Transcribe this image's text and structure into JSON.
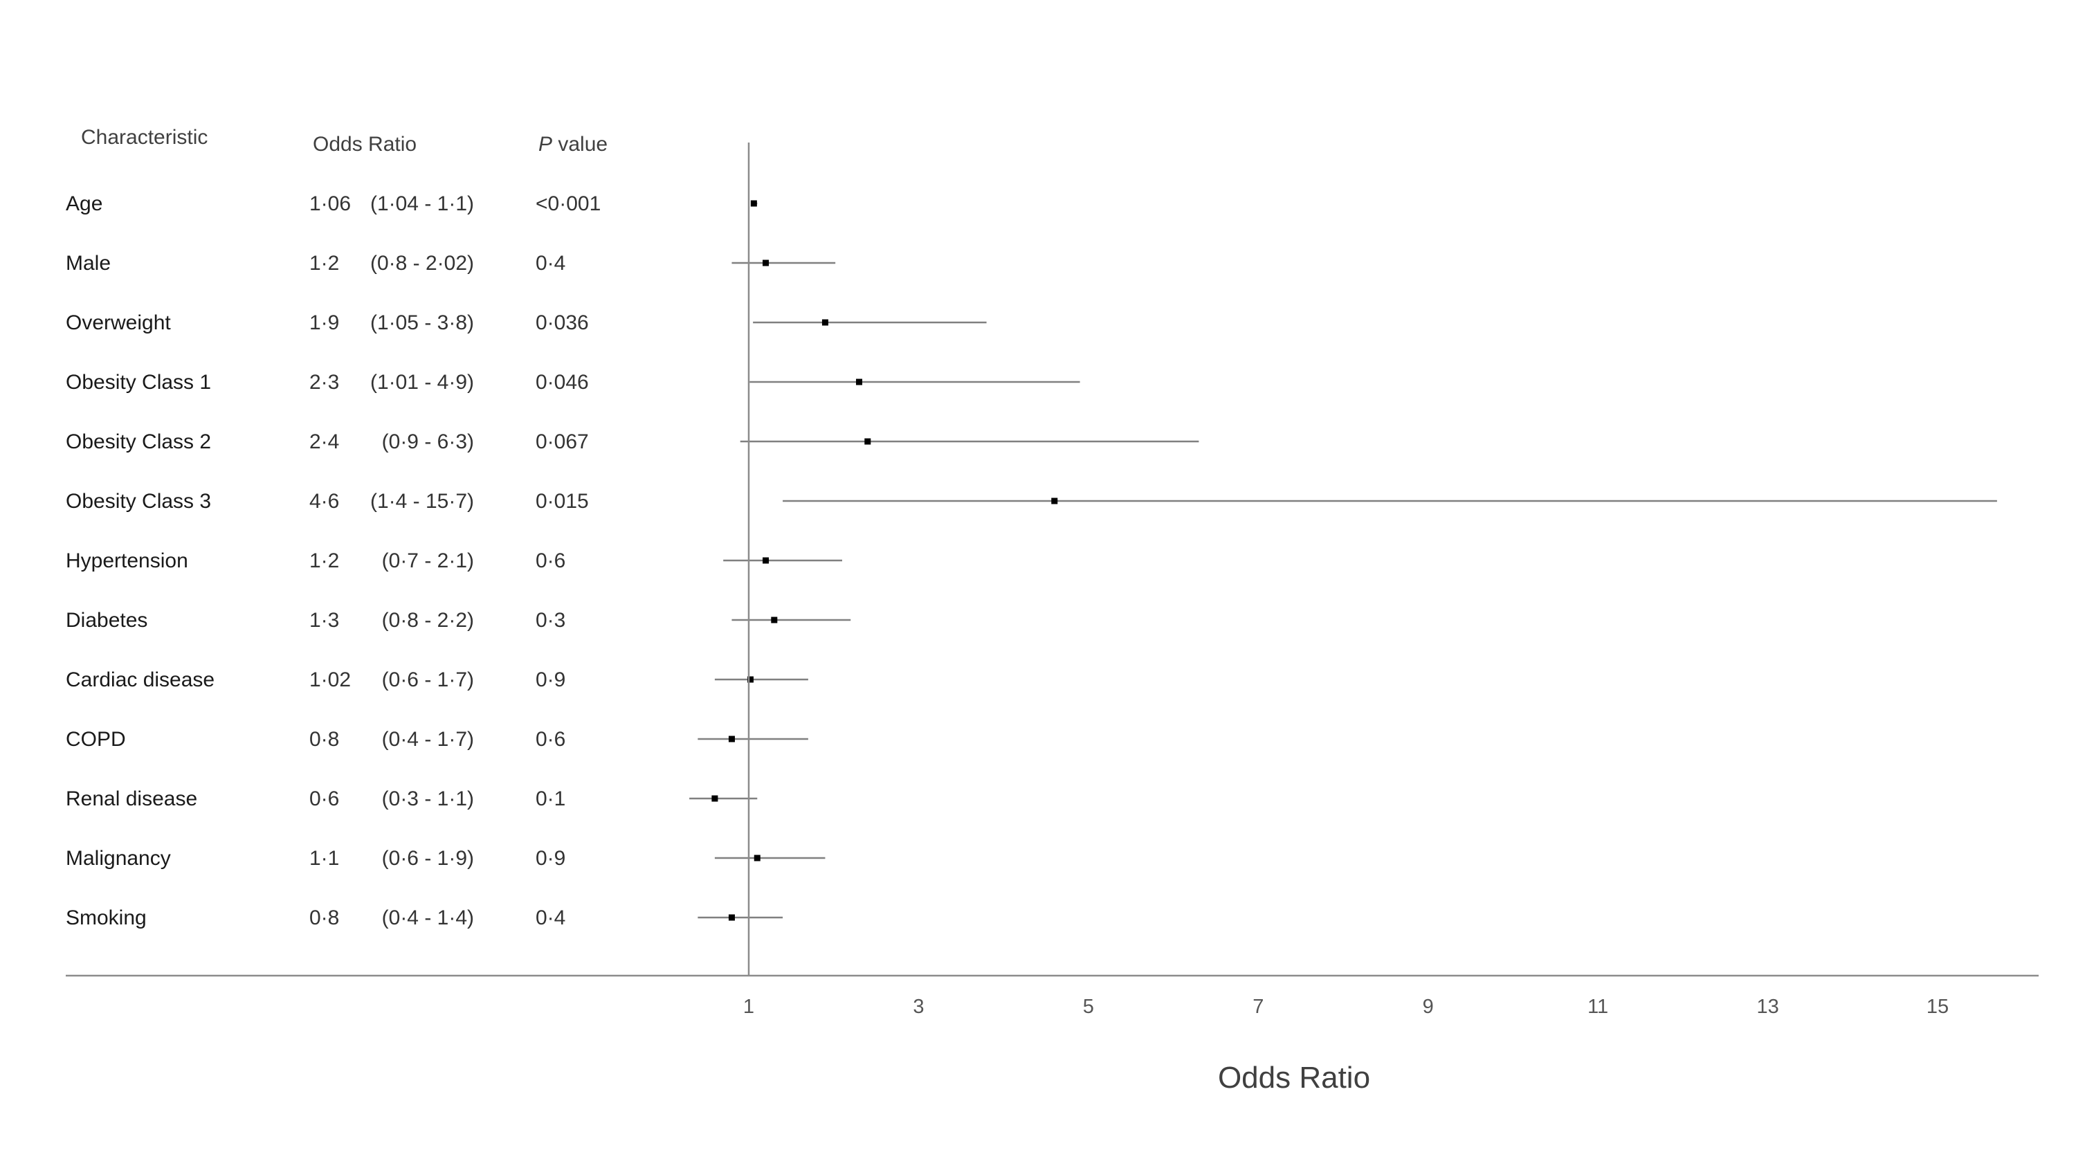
{
  "headers": {
    "characteristic": "Characteristic",
    "odds_ratio": "Odds Ratio",
    "p_value_italic": "P",
    "p_value_rest": " value"
  },
  "chart_data": {
    "type": "forest",
    "xlabel": "Odds Ratio",
    "x_ticks": [
      1,
      3,
      5,
      7,
      9,
      11,
      13,
      15
    ],
    "x_tick_labels": [
      "1",
      "3",
      "5",
      "7",
      "9",
      "11",
      "13",
      "15"
    ],
    "reference_line": 1,
    "rows": [
      {
        "label": "Age",
        "or_text": "1·06",
        "ci_text": "(1·04 - 1·1)",
        "p_text": "<0·001",
        "or": 1.06,
        "low": 1.04,
        "high": 1.1
      },
      {
        "label": "Male",
        "or_text": "1·2",
        "ci_text": "(0·8 - 2·02)",
        "p_text": "0·4",
        "or": 1.2,
        "low": 0.8,
        "high": 2.02
      },
      {
        "label": "Overweight",
        "or_text": "1·9",
        "ci_text": "(1·05 - 3·8)",
        "p_text": "0·036",
        "or": 1.9,
        "low": 1.05,
        "high": 3.8
      },
      {
        "label": "Obesity Class 1",
        "or_text": "2·3",
        "ci_text": "(1·01 - 4·9)",
        "p_text": "0·046",
        "or": 2.3,
        "low": 1.01,
        "high": 4.9
      },
      {
        "label": "Obesity Class 2",
        "or_text": "2·4",
        "ci_text": "(0·9 - 6·3)",
        "p_text": "0·067",
        "or": 2.4,
        "low": 0.9,
        "high": 6.3
      },
      {
        "label": "Obesity Class 3",
        "or_text": "4·6",
        "ci_text": "(1·4 - 15·7)",
        "p_text": "0·015",
        "or": 4.6,
        "low": 1.4,
        "high": 15.7
      },
      {
        "label": "Hypertension",
        "or_text": "1·2",
        "ci_text": "(0·7 - 2·1)",
        "p_text": "0·6",
        "or": 1.2,
        "low": 0.7,
        "high": 2.1
      },
      {
        "label": "Diabetes",
        "or_text": "1·3",
        "ci_text": "(0·8 - 2·2)",
        "p_text": "0·3",
        "or": 1.3,
        "low": 0.8,
        "high": 2.2
      },
      {
        "label": "Cardiac disease",
        "or_text": "1·02",
        "ci_text": "(0·6 - 1·7)",
        "p_text": "0·9",
        "or": 1.02,
        "low": 0.6,
        "high": 1.7
      },
      {
        "label": "COPD",
        "or_text": "0·8",
        "ci_text": "(0·4 - 1·7)",
        "p_text": "0·6",
        "or": 0.8,
        "low": 0.4,
        "high": 1.7
      },
      {
        "label": "Renal disease",
        "or_text": "0·6",
        "ci_text": "(0·3 - 1·1)",
        "p_text": "0·1",
        "or": 0.6,
        "low": 0.3,
        "high": 1.1
      },
      {
        "label": "Malignancy",
        "or_text": "1·1",
        "ci_text": "(0·6 - 1·9)",
        "p_text": "0·9",
        "or": 1.1,
        "low": 0.6,
        "high": 1.9
      },
      {
        "label": "Smoking",
        "or_text": "0·8",
        "ci_text": "(0·4 - 1·4)",
        "p_text": "0·4",
        "or": 0.8,
        "low": 0.4,
        "high": 1.4
      }
    ]
  }
}
